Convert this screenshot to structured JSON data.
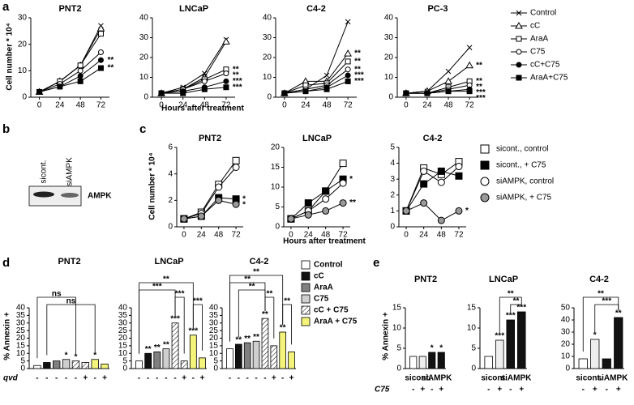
{
  "panel_labels": [
    "a",
    "b",
    "c",
    "d",
    "e"
  ],
  "blot": {
    "lanes": [
      "sicont.",
      "siAMPK"
    ],
    "protein": "AMPK"
  },
  "chart_data": [
    {
      "type": "line",
      "ylabel": "Cell number * 10⁴",
      "xlabel": "Hours after treatment",
      "x": [
        0,
        24,
        48,
        72
      ],
      "xlim": [
        -10,
        82
      ],
      "xticks": [
        0,
        24,
        48,
        72
      ],
      "series": [
        {
          "name": "Control",
          "marker": "x",
          "color": "#000000"
        },
        {
          "name": "cC",
          "marker": "triangle",
          "color": "#ffffff"
        },
        {
          "name": "AraA",
          "marker": "square",
          "color": "#ffffff"
        },
        {
          "name": "C75",
          "marker": "circle",
          "color": "#ffffff"
        },
        {
          "name": "cC+C75",
          "marker": "circle",
          "color": "#000000"
        },
        {
          "name": "AraA+C75",
          "marker": "square",
          "color": "#000000"
        }
      ],
      "plots": [
        {
          "title": "PNT2",
          "ylim": [
            0,
            30
          ],
          "yticks": [
            0,
            10,
            20,
            30
          ],
          "values": [
            [
              2,
              6,
              12,
              27
            ],
            [
              2,
              6,
              12,
              26
            ],
            [
              2,
              6,
              12,
              24
            ],
            [
              2,
              5,
              10,
              17
            ],
            [
              2,
              4,
              8,
              14
            ],
            [
              2,
              4,
              6,
              11
            ]
          ],
          "annotations": [
            null,
            null,
            null,
            null,
            "**",
            "**"
          ]
        },
        {
          "title": "LNCaP",
          "ylim": [
            0,
            40
          ],
          "yticks": [
            0,
            10,
            20,
            30,
            40
          ],
          "values": [
            [
              2,
              5,
              12,
              29
            ],
            [
              2,
              4,
              10,
              28
            ],
            [
              2,
              4,
              9,
              14
            ],
            [
              2,
              4,
              8,
              12
            ],
            [
              2,
              3,
              5,
              8
            ],
            [
              2,
              2,
              4,
              5
            ]
          ],
          "annotations": [
            null,
            null,
            "**",
            "**",
            "***",
            "***"
          ]
        },
        {
          "title": "C4-2",
          "ylim": [
            0,
            40
          ],
          "yticks": [
            0,
            10,
            20,
            30,
            40
          ],
          "values": [
            [
              2,
              4,
              11,
              38
            ],
            [
              2,
              8,
              8,
              22
            ],
            [
              2,
              6,
              7,
              18
            ],
            [
              2,
              4,
              6,
              14
            ],
            [
              2,
              3,
              5,
              11
            ],
            [
              2,
              3,
              4,
              8
            ]
          ],
          "annotations": [
            null,
            "**",
            "**",
            "**",
            "***",
            "***"
          ]
        },
        {
          "title": "PC-3",
          "ylim": [
            0,
            40
          ],
          "yticks": [
            0,
            10,
            20,
            30,
            40
          ],
          "values": [
            [
              2,
              3,
              13,
              25
            ],
            [
              2,
              3,
              8,
              16
            ],
            [
              2,
              2,
              5,
              8
            ],
            [
              2,
              2,
              4,
              6
            ],
            [
              2,
              2,
              3,
              4
            ],
            [
              2,
              2,
              3,
              3
            ]
          ],
          "annotations": [
            null,
            "**",
            "**",
            "**",
            "***",
            "***"
          ]
        }
      ]
    },
    {
      "type": "line",
      "ylabel": "Cell number * 10⁴",
      "xlabel": "Hours after treatment",
      "x": [
        0,
        24,
        48,
        72
      ],
      "xlim": [
        -10,
        82
      ],
      "xticks": [
        0,
        24,
        48,
        72
      ],
      "series": [
        {
          "name": "sicont., control",
          "marker": "square",
          "color": "#ffffff"
        },
        {
          "name": "sicont., + C75",
          "marker": "square",
          "color": "#000000"
        },
        {
          "name": "siAMPK, control",
          "marker": "circle",
          "color": "#ffffff"
        },
        {
          "name": "siAMPK, + C75",
          "marker": "circle",
          "color": "#9a9a9a"
        }
      ],
      "plots": [
        {
          "title": "PNT2",
          "ylim": [
            0,
            6
          ],
          "yticks": [
            0,
            2,
            4,
            6
          ],
          "values": [
            [
              0.6,
              1.1,
              3.2,
              5.0
            ],
            [
              0.6,
              0.8,
              2.2,
              2.1
            ],
            [
              0.6,
              1.0,
              3.0,
              4.5
            ],
            [
              0.6,
              0.8,
              2.0,
              1.7
            ]
          ],
          "annotations": [
            null,
            "*",
            null,
            "*"
          ]
        },
        {
          "title": "LNCaP",
          "ylim": [
            0,
            20
          ],
          "yticks": [
            0,
            5,
            10,
            15,
            20
          ],
          "values": [
            [
              2,
              4,
              9,
              16
            ],
            [
              2,
              6,
              9,
              12
            ],
            [
              2,
              4,
              7,
              11
            ],
            [
              2,
              3,
              4,
              6
            ]
          ],
          "annotations": [
            null,
            "*",
            null,
            "**"
          ]
        },
        {
          "title": "C4-2",
          "ylim": [
            0,
            5
          ],
          "yticks": [
            0,
            1,
            2,
            3,
            4,
            5
          ],
          "values": [
            [
              1,
              3.7,
              3.3,
              4.1
            ],
            [
              1,
              2.7,
              3.5,
              3.2
            ],
            [
              1,
              3.5,
              2.8,
              3.8
            ],
            [
              1,
              1.5,
              0.4,
              1.0
            ]
          ],
          "annotations": [
            null,
            null,
            null,
            "*"
          ]
        }
      ]
    },
    {
      "type": "bar",
      "ylabel": "% Annexin +",
      "row_label": "qvd",
      "row": [
        "-",
        "-",
        "-",
        "-",
        "-",
        "+",
        "-",
        "+"
      ],
      "bar_colors": [
        "#ffffff",
        "#111111",
        "#808080",
        "#cfcfcf",
        "#ffffff",
        "#ffffff",
        "#f4f47a",
        "#f4f47a"
      ],
      "hatched": [
        false,
        false,
        false,
        false,
        true,
        true,
        false,
        false
      ],
      "legend": [
        {
          "name": "Control",
          "color": "#ffffff"
        },
        {
          "name": "cC",
          "color": "#111111"
        },
        {
          "name": "AraA",
          "color": "#808080"
        },
        {
          "name": "C75",
          "color": "#cfcfcf"
        },
        {
          "name": "cC + C75",
          "color": "#ffffff",
          "hatched": true
        },
        {
          "name": "AraA + C75",
          "color": "#f4f47a"
        }
      ],
      "plots": [
        {
          "title": "PNT2",
          "ylim": [
            0,
            40
          ],
          "yticks": [
            0,
            5,
            10,
            15,
            20,
            25,
            30,
            35,
            40
          ],
          "values": [
            2,
            4,
            5,
            6,
            5,
            4,
            6,
            3
          ],
          "bar_labels": [
            null,
            null,
            null,
            "*",
            "*",
            null,
            "*",
            null
          ],
          "brackets": [
            "ns",
            "ns"
          ]
        },
        {
          "title": "LNCaP",
          "ylim": [
            0,
            40
          ],
          "yticks": [
            0,
            5,
            10,
            15,
            20,
            25,
            30,
            35,
            40
          ],
          "values": [
            5,
            10,
            11,
            13,
            30,
            5,
            22,
            7
          ],
          "bar_labels": [
            null,
            "**",
            "**",
            "**",
            "***",
            null,
            "***",
            null
          ],
          "brackets": [
            "**",
            "***",
            "***",
            "***"
          ]
        },
        {
          "title": "C4-2",
          "ylim": [
            0,
            40
          ],
          "yticks": [
            0,
            5,
            10,
            15,
            20,
            25,
            30,
            35,
            40
          ],
          "values": [
            13,
            16,
            17,
            18,
            33,
            15,
            24,
            11
          ],
          "bar_labels": [
            null,
            "**",
            "**",
            "**",
            "**",
            null,
            "**",
            null
          ],
          "brackets": [
            "**",
            "**",
            "**",
            "**",
            "**"
          ]
        }
      ]
    },
    {
      "type": "bar",
      "ylabel": "% Annexin +",
      "row_label": "C75",
      "row": [
        "-",
        "+",
        "-",
        "+"
      ],
      "groups": [
        "sicont.",
        "siAMPK"
      ],
      "bar_colors": [
        "#ffffff",
        "#eeeeee",
        "#111111",
        "#111111"
      ],
      "plots": [
        {
          "title": "PNT2",
          "ylim": [
            0,
            15
          ],
          "yticks": [
            0,
            5,
            10,
            15
          ],
          "values": [
            3,
            3,
            4,
            4
          ],
          "bar_labels": [
            null,
            null,
            "*",
            "*"
          ],
          "brackets": []
        },
        {
          "title": "LNCaP",
          "ylim": [
            0,
            15
          ],
          "yticks": [
            0,
            5,
            10,
            15
          ],
          "values": [
            3,
            7,
            12,
            14
          ],
          "bar_labels": [
            null,
            "***",
            "***",
            "***"
          ],
          "brackets": [
            "**",
            "**"
          ]
        },
        {
          "title": "C4-2",
          "ylim": [
            0,
            50
          ],
          "yticks": [
            0,
            10,
            20,
            30,
            40,
            50
          ],
          "values": [
            8,
            24,
            8,
            42
          ],
          "bar_labels": [
            null,
            "*",
            null,
            "**"
          ],
          "brackets": [
            "**",
            "***"
          ]
        }
      ]
    }
  ]
}
